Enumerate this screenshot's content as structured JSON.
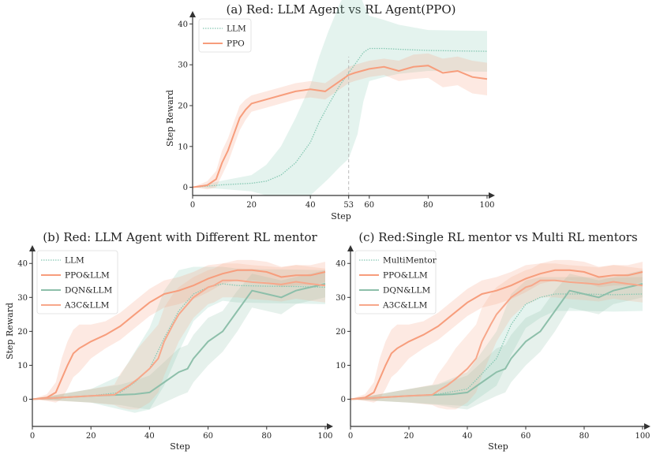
{
  "colors": {
    "llm": "#86c8b3",
    "ppo": "#f79d7c",
    "dqn": "#8dbfaa",
    "a3c": "#f7a78a",
    "axis": "#333333"
  },
  "chart_data": [
    {
      "type": "line",
      "title": "(a) Red: LLM Agent vs RL Agent(PPO)",
      "xlabel": "Step",
      "ylabel": "Step Reward",
      "xlim": [
        0,
        100
      ],
      "ylim": [
        -2,
        42
      ],
      "xticks": [
        0,
        20,
        40,
        53,
        60,
        80,
        100
      ],
      "yticks": [
        0,
        10,
        20,
        30,
        40
      ],
      "vline": 53,
      "legend": "top-left",
      "series": [
        {
          "name": "LLM",
          "color": "llm",
          "style": "dotted",
          "x": [
            0,
            10,
            20,
            25,
            30,
            35,
            40,
            43,
            46,
            50,
            53,
            56,
            58,
            60,
            65,
            70,
            80,
            90,
            100
          ],
          "y": [
            0,
            0.6,
            1,
            1.5,
            3,
            6,
            11,
            16,
            20,
            25,
            28,
            31,
            33,
            34,
            34,
            33.8,
            33.5,
            33.4,
            33.3
          ],
          "band": [
            0,
            1,
            2,
            4,
            7,
            11,
            14,
            16,
            18,
            20,
            21,
            18,
            12,
            8,
            7,
            6,
            5,
            5,
            5
          ]
        },
        {
          "name": "PPO",
          "color": "ppo",
          "style": "solid",
          "x": [
            0,
            5,
            8,
            10,
            12,
            14,
            16,
            18,
            20,
            25,
            30,
            35,
            40,
            45,
            50,
            53,
            55,
            60,
            65,
            70,
            75,
            80,
            85,
            90,
            95,
            100
          ],
          "y": [
            0,
            0.5,
            2,
            6,
            9,
            13,
            17,
            19,
            20.5,
            21.5,
            22.5,
            23.5,
            24,
            23.5,
            26,
            27.5,
            28,
            29,
            29.5,
            28.5,
            29.5,
            29.8,
            28,
            28.5,
            27,
            26.5
          ],
          "band": [
            0,
            1,
            2,
            3,
            3,
            3,
            3,
            2.5,
            2,
            2,
            2,
            2,
            2,
            2,
            2,
            2,
            2,
            2,
            2,
            2.5,
            3,
            3,
            3.5,
            3.5,
            4,
            4
          ]
        }
      ]
    },
    {
      "type": "line",
      "title": "(b) Red: LLM Agent with Different RL mentor",
      "xlabel": "Step",
      "ylabel": "Step Reward",
      "xlim": [
        0,
        100
      ],
      "ylim": [
        -8,
        44
      ],
      "xticks": [
        0,
        20,
        40,
        60,
        80,
        100
      ],
      "yticks": [
        0,
        10,
        20,
        30,
        40
      ],
      "legend": "top-left",
      "series": [
        {
          "name": "LLM",
          "color": "llm",
          "style": "dotted",
          "x": [
            0,
            10,
            20,
            30,
            35,
            40,
            45,
            50,
            55,
            60,
            65,
            70,
            80,
            90,
            100
          ],
          "y": [
            0,
            0.6,
            1,
            2,
            5,
            9,
            18,
            26,
            31,
            33,
            34,
            33.5,
            33.3,
            33.2,
            33
          ],
          "band": [
            0,
            1,
            2,
            5,
            9,
            12,
            14,
            12,
            8,
            6,
            5,
            5,
            5,
            5,
            5
          ]
        },
        {
          "name": "PPO&LLM",
          "color": "ppo",
          "style": "solid",
          "x": [
            0,
            5,
            8,
            10,
            12,
            14,
            16,
            18,
            20,
            25,
            30,
            35,
            40,
            45,
            50,
            55,
            60,
            65,
            70,
            75,
            80,
            85,
            90,
            95,
            100
          ],
          "y": [
            0,
            0.5,
            2,
            6,
            10,
            13.5,
            15,
            16,
            17,
            19,
            21.5,
            25,
            28.5,
            31,
            32,
            33.5,
            35.5,
            37,
            38,
            38,
            37.5,
            36,
            36.5,
            36.5,
            37.5
          ],
          "band": [
            0,
            1,
            3,
            6,
            7,
            7,
            7,
            6,
            5,
            4,
            4,
            4,
            4,
            4,
            4,
            4,
            4,
            3,
            3,
            3,
            3,
            3,
            3,
            3,
            3
          ]
        },
        {
          "name": "DQN&LLM",
          "color": "dqn",
          "style": "solid",
          "x": [
            0,
            10,
            20,
            30,
            35,
            40,
            45,
            50,
            53,
            55,
            58,
            60,
            65,
            70,
            75,
            80,
            85,
            90,
            95,
            100
          ],
          "y": [
            0,
            0.5,
            1,
            1.3,
            1.5,
            2,
            5,
            8,
            9,
            12,
            15,
            17,
            20,
            26,
            32,
            31,
            30,
            32,
            33,
            34
          ],
          "band": [
            0,
            1,
            2,
            3,
            4,
            5,
            6,
            7,
            7,
            7,
            7,
            7,
            6,
            6,
            5,
            5,
            5,
            4,
            4,
            4
          ]
        },
        {
          "name": "A3C&LLM",
          "color": "a3c",
          "style": "solid",
          "x": [
            0,
            10,
            20,
            28,
            30,
            33,
            36,
            40,
            43,
            45,
            48,
            50,
            55,
            60,
            62,
            65,
            70,
            75,
            80,
            85,
            90,
            95,
            100
          ],
          "y": [
            0,
            0.5,
            1,
            1.3,
            2.5,
            4,
            6,
            9,
            12,
            17,
            22,
            25,
            30,
            33,
            33.5,
            35,
            35,
            34.5,
            34.2,
            33.8,
            34.6,
            34,
            33.5
          ],
          "band": [
            0,
            1,
            2,
            3,
            5,
            7,
            9,
            10,
            10,
            10,
            9,
            8,
            6,
            5,
            5,
            5,
            5,
            5,
            5,
            5,
            5,
            5,
            5
          ]
        }
      ]
    },
    {
      "type": "line",
      "title": "(c) Red:Single RL mentor vs Multi RL mentors",
      "xlabel": "Step",
      "ylabel": "",
      "xlim": [
        0,
        100
      ],
      "ylim": [
        -8,
        44
      ],
      "xticks": [
        0,
        20,
        40,
        60,
        80,
        100
      ],
      "yticks": [
        0,
        10,
        20,
        30,
        40
      ],
      "legend": "top-left",
      "series": [
        {
          "name": "MultiMentor",
          "color": "llm",
          "style": "dotted",
          "x": [
            0,
            10,
            20,
            30,
            40,
            50,
            55,
            60,
            65,
            70,
            80,
            90,
            100
          ],
          "y": [
            0,
            0.5,
            1,
            1.5,
            3,
            12,
            22,
            28,
            30,
            31,
            31,
            30.8,
            31
          ],
          "band": [
            0,
            1,
            2,
            3,
            5,
            8,
            9,
            7,
            6,
            5,
            5,
            5,
            5
          ]
        },
        {
          "name": "PPO&LLM",
          "color": "ppo",
          "style": "solid",
          "x": [
            0,
            5,
            8,
            10,
            12,
            14,
            16,
            18,
            20,
            25,
            30,
            35,
            40,
            45,
            50,
            55,
            60,
            65,
            70,
            75,
            80,
            85,
            90,
            95,
            100
          ],
          "y": [
            0,
            0.5,
            2,
            6,
            10,
            13.5,
            15,
            16,
            17,
            19,
            21.5,
            25,
            28.5,
            31,
            32,
            33.5,
            35.5,
            37,
            38,
            38,
            37.5,
            36,
            36.5,
            36.5,
            37.5
          ],
          "band": [
            0,
            1,
            3,
            6,
            7,
            7,
            7,
            6,
            5,
            4,
            4,
            4,
            4,
            4,
            4,
            4,
            4,
            3,
            3,
            3,
            3,
            3,
            3,
            3,
            3
          ]
        },
        {
          "name": "DQN&LLM",
          "color": "dqn",
          "style": "solid",
          "x": [
            0,
            10,
            20,
            30,
            35,
            40,
            45,
            50,
            53,
            55,
            58,
            60,
            65,
            70,
            75,
            80,
            85,
            90,
            95,
            100
          ],
          "y": [
            0,
            0.5,
            1,
            1.3,
            1.5,
            2,
            5,
            8,
            9,
            12,
            15,
            17,
            20,
            26,
            32,
            31,
            30,
            32,
            33,
            34
          ],
          "band": [
            0,
            1,
            2,
            3,
            4,
            5,
            6,
            7,
            7,
            7,
            7,
            7,
            6,
            6,
            5,
            5,
            5,
            4,
            4,
            4
          ]
        },
        {
          "name": "A3C&LLM",
          "color": "a3c",
          "style": "solid",
          "x": [
            0,
            10,
            20,
            28,
            30,
            33,
            36,
            40,
            43,
            45,
            48,
            50,
            55,
            60,
            62,
            65,
            70,
            75,
            80,
            85,
            90,
            95,
            100
          ],
          "y": [
            0,
            0.5,
            1,
            1.3,
            2.5,
            4,
            6,
            9,
            12,
            17,
            22,
            25,
            30,
            33,
            33.5,
            35,
            35,
            34.5,
            34.2,
            33.8,
            34.6,
            34,
            33.5
          ],
          "band": [
            0,
            1,
            2,
            3,
            5,
            7,
            9,
            10,
            10,
            10,
            9,
            8,
            6,
            5,
            5,
            5,
            5,
            5,
            5,
            5,
            5,
            5,
            5
          ]
        }
      ]
    }
  ]
}
